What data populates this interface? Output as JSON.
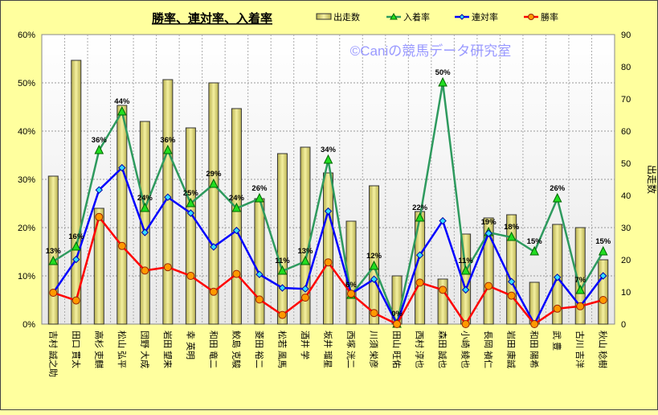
{
  "chart_data": {
    "type": "bar+line",
    "title": "勝率、連対率、入着率",
    "watermark": "©Caniの競馬データ研究室",
    "ylabel_right": "出走数",
    "ylim_left": [
      0,
      60
    ],
    "ylim_right": [
      0,
      90
    ],
    "left_ticks": [
      "0%",
      "10%",
      "20%",
      "30%",
      "40%",
      "50%",
      "60%"
    ],
    "right_ticks": [
      "0",
      "10",
      "20",
      "30",
      "40",
      "50",
      "60",
      "70",
      "80",
      "90"
    ],
    "grid": true,
    "legend_position": "top-right",
    "categories": [
      "吉村 誠之助",
      "田口 貫太",
      "高杉 吏麒",
      "松山 弘平",
      "団野 大成",
      "岩田 望来",
      "幸 英明",
      "和田 竜二",
      "鮫島 克駿",
      "菱田 裕二",
      "松若 風馬",
      "酒井 学",
      "坂井 瑠星",
      "西塚 洸二",
      "川須 栄彦",
      "田山 旺佑",
      "西村 淳也",
      "森田 誠也",
      "小崎 綾也",
      "長岡 禎仁",
      "岩田 康誠",
      "和田 陽希",
      "武 豊",
      "古川 吉洋",
      "秋山 稔樹"
    ],
    "series": [
      {
        "name": "出走数",
        "type": "bar",
        "axis": "right",
        "color": "#E8E070",
        "values": [
          46,
          82,
          36,
          68,
          63,
          76,
          61,
          75,
          67,
          39,
          53,
          55,
          47,
          32,
          43,
          15,
          35,
          14,
          28,
          33,
          34,
          13,
          31,
          30,
          20
        ]
      },
      {
        "name": "入着率",
        "type": "line",
        "axis": "left",
        "color": "#2E9A5E",
        "marker": "#22DD22",
        "values": [
          13,
          16,
          36,
          44,
          24,
          36,
          25,
          29,
          24,
          26,
          11,
          13,
          34,
          6,
          12,
          0,
          22,
          50,
          11,
          19,
          18,
          15,
          26,
          7,
          15
        ],
        "labels": [
          "13%",
          "16%",
          "36%",
          "44%",
          "24%",
          "36%",
          "25%",
          "29%",
          "24%",
          "26%",
          "11%",
          "13%",
          "34%",
          "6%",
          "12%",
          "0%",
          "22%",
          "50%",
          "11%",
          "19%",
          "18%",
          "15%",
          "26%",
          "7%",
          "15%"
        ]
      },
      {
        "name": "連対率",
        "type": "line",
        "axis": "left",
        "color": "#0000FF",
        "marker": "#33DDFF",
        "values": [
          6.5,
          13.4,
          27.8,
          32.4,
          19.0,
          26.3,
          23.0,
          16.0,
          19.4,
          10.3,
          7.5,
          7.3,
          23.4,
          6.3,
          9.3,
          0,
          14.3,
          21.4,
          7.1,
          18.8,
          8.8,
          0,
          9.7,
          3.7,
          10.0
        ]
      },
      {
        "name": "勝率",
        "type": "line",
        "axis": "left",
        "color": "#FF0000",
        "marker": "#FF9900",
        "values": [
          6.5,
          4.9,
          22.2,
          16.2,
          11.1,
          11.8,
          10.0,
          6.7,
          10.4,
          5.1,
          1.9,
          5.5,
          12.8,
          6.3,
          2.3,
          0,
          8.6,
          7.1,
          0,
          7.9,
          5.9,
          0,
          3.2,
          3.7,
          5.0
        ]
      }
    ]
  }
}
